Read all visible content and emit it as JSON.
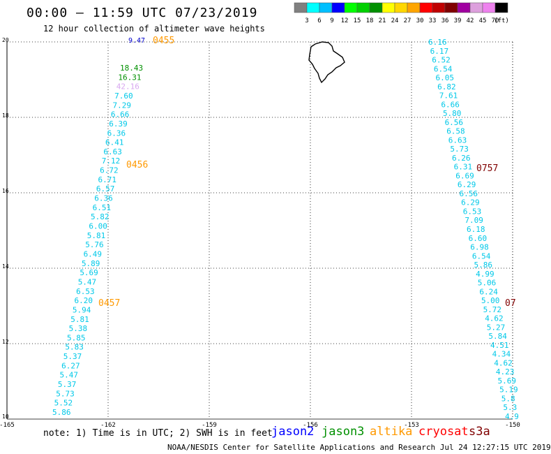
{
  "title": "00:00 — 11:59 UTC 07/23/2019",
  "subtitle": "12 hour collection of altimeter wave heights",
  "legend": {
    "colors": [
      "#808080",
      "#00ffff",
      "#00bfff",
      "#0000ff",
      "#00ff00",
      "#00d000",
      "#009000",
      "#ffff00",
      "#ffd700",
      "#ffa500",
      "#ff0000",
      "#c00000",
      "#800000",
      "#a000a0",
      "#dda0dd",
      "#ee82ee",
      "#000000"
    ],
    "labels": [
      "3",
      "6",
      "9",
      "12",
      "15",
      "18",
      "21",
      "24",
      "27",
      "30",
      "33",
      "36",
      "39",
      "42",
      "45",
      "70",
      "(ft)"
    ]
  },
  "axes": {
    "lat_labels": [
      "20",
      "18",
      "16",
      "14",
      "12",
      "10"
    ],
    "lon_labels": [
      "-165",
      "-162",
      "-159",
      "-156",
      "-153",
      "-150"
    ]
  },
  "tracks": [
    {
      "time_labels": [
        {
          "text": "0455",
          "color": "#ff9900"
        },
        {
          "text": "0456",
          "color": "#ff9900"
        },
        {
          "text": "0457",
          "color": "#ff9900"
        }
      ],
      "values": [
        {
          "text": "9.47",
          "color": "#0000cc"
        },
        {
          "text": "18.43",
          "color": "#009000"
        },
        {
          "text": "16.31",
          "color": "#009000"
        },
        {
          "text": "42.16",
          "color": "#d8a8f0"
        },
        {
          "text": "7.60",
          "color": "#00c8e8"
        },
        {
          "text": "7.29",
          "color": "#00c8e8"
        },
        {
          "text": "6.66",
          "color": "#00c8e8"
        },
        {
          "text": "6.39",
          "color": "#00c8e8"
        },
        {
          "text": "6.36",
          "color": "#00c8e8"
        },
        {
          "text": "6.41",
          "color": "#00c8e8"
        },
        {
          "text": "6.63",
          "color": "#00c8e8"
        },
        {
          "text": "7.12",
          "color": "#00c8e8"
        },
        {
          "text": "6.72",
          "color": "#00c8e8"
        },
        {
          "text": "6.71",
          "color": "#00c8e8"
        },
        {
          "text": "6.57",
          "color": "#00c8e8"
        },
        {
          "text": "6.36",
          "color": "#00c8e8"
        },
        {
          "text": "6.51",
          "color": "#00c8e8"
        },
        {
          "text": "5.82",
          "color": "#00c8e8"
        },
        {
          "text": "6.00",
          "color": "#00c8e8"
        },
        {
          "text": "5.81",
          "color": "#00c8e8"
        },
        {
          "text": "5.76",
          "color": "#00c8e8"
        },
        {
          "text": "6.49",
          "color": "#00c8e8"
        },
        {
          "text": "5.89",
          "color": "#00c8e8"
        },
        {
          "text": "5.69",
          "color": "#00c8e8"
        },
        {
          "text": "5.47",
          "color": "#00c8e8"
        },
        {
          "text": "6.53",
          "color": "#00c8e8"
        },
        {
          "text": "6.20",
          "color": "#00c8e8"
        },
        {
          "text": "5.94",
          "color": "#00c8e8"
        },
        {
          "text": "5.81",
          "color": "#00c8e8"
        },
        {
          "text": "5.38",
          "color": "#00c8e8"
        },
        {
          "text": "5.85",
          "color": "#00c8e8"
        },
        {
          "text": "5.83",
          "color": "#00c8e8"
        },
        {
          "text": "5.37",
          "color": "#00c8e8"
        },
        {
          "text": "6.27",
          "color": "#00c8e8"
        },
        {
          "text": "5.47",
          "color": "#00c8e8"
        },
        {
          "text": "5.37",
          "color": "#00c8e8"
        },
        {
          "text": "5.73",
          "color": "#00c8e8"
        },
        {
          "text": "5.52",
          "color": "#00c8e8"
        },
        {
          "text": "5.86",
          "color": "#00c8e8"
        }
      ]
    },
    {
      "time_labels": [
        {
          "text": "0757",
          "color": "#800000"
        },
        {
          "text": "07",
          "color": "#800000"
        }
      ],
      "values": [
        {
          "text": "6.16",
          "color": "#00c8e8"
        },
        {
          "text": "6.17",
          "color": "#00c8e8"
        },
        {
          "text": "6.52",
          "color": "#00c8e8"
        },
        {
          "text": "6.54",
          "color": "#00c8e8"
        },
        {
          "text": "6.05",
          "color": "#00c8e8"
        },
        {
          "text": "6.82",
          "color": "#00c8e8"
        },
        {
          "text": "7.61",
          "color": "#00c8e8"
        },
        {
          "text": "6.66",
          "color": "#00c8e8"
        },
        {
          "text": "5.80",
          "color": "#00c8e8"
        },
        {
          "text": "6.56",
          "color": "#00c8e8"
        },
        {
          "text": "6.58",
          "color": "#00c8e8"
        },
        {
          "text": "6.63",
          "color": "#00c8e8"
        },
        {
          "text": "5.73",
          "color": "#00c8e8"
        },
        {
          "text": "6.26",
          "color": "#00c8e8"
        },
        {
          "text": "6.31",
          "color": "#00c8e8"
        },
        {
          "text": "6.69",
          "color": "#00c8e8"
        },
        {
          "text": "6.29",
          "color": "#00c8e8"
        },
        {
          "text": "6.56",
          "color": "#00c8e8"
        },
        {
          "text": "6.29",
          "color": "#00c8e8"
        },
        {
          "text": "6.53",
          "color": "#00c8e8"
        },
        {
          "text": "7.09",
          "color": "#00c8e8"
        },
        {
          "text": "6.18",
          "color": "#00c8e8"
        },
        {
          "text": "6.60",
          "color": "#00c8e8"
        },
        {
          "text": "6.98",
          "color": "#00c8e8"
        },
        {
          "text": "6.54",
          "color": "#00c8e8"
        },
        {
          "text": "5.86",
          "color": "#00c8e8"
        },
        {
          "text": "4.99",
          "color": "#00c8e8"
        },
        {
          "text": "5.06",
          "color": "#00c8e8"
        },
        {
          "text": "6.24",
          "color": "#00c8e8"
        },
        {
          "text": "5.00",
          "color": "#00c8e8"
        },
        {
          "text": "5.72",
          "color": "#00c8e8"
        },
        {
          "text": "4.62",
          "color": "#00c8e8"
        },
        {
          "text": "5.27",
          "color": "#00c8e8"
        },
        {
          "text": "5.84",
          "color": "#00c8e8"
        },
        {
          "text": "4.51",
          "color": "#00c8e8"
        },
        {
          "text": "4.34",
          "color": "#00c8e8"
        },
        {
          "text": "4.62",
          "color": "#00c8e8"
        },
        {
          "text": "4.23",
          "color": "#00c8e8"
        },
        {
          "text": "5.69",
          "color": "#00c8e8"
        },
        {
          "text": "5.19",
          "color": "#00c8e8"
        },
        {
          "text": "5.8",
          "color": "#00c8e8"
        },
        {
          "text": "5.3",
          "color": "#00c8e8"
        },
        {
          "text": "4.9",
          "color": "#00c8e8"
        }
      ]
    }
  ],
  "note": "note: 1) Time is in UTC; 2) SWH is in feet",
  "satellites": [
    {
      "name": "jason2",
      "color": "#0000ff"
    },
    {
      "name": "jason3",
      "color": "#009000"
    },
    {
      "name": "altika",
      "color": "#ff9900"
    },
    {
      "name": "cryosat",
      "color": "#ff0000"
    },
    {
      "name": "s3a",
      "color": "#800000"
    }
  ],
  "credit": "NOAA/NESDIS Center for Satellite Applications and Research    Jul 24 12:27:15 UTC 2019"
}
